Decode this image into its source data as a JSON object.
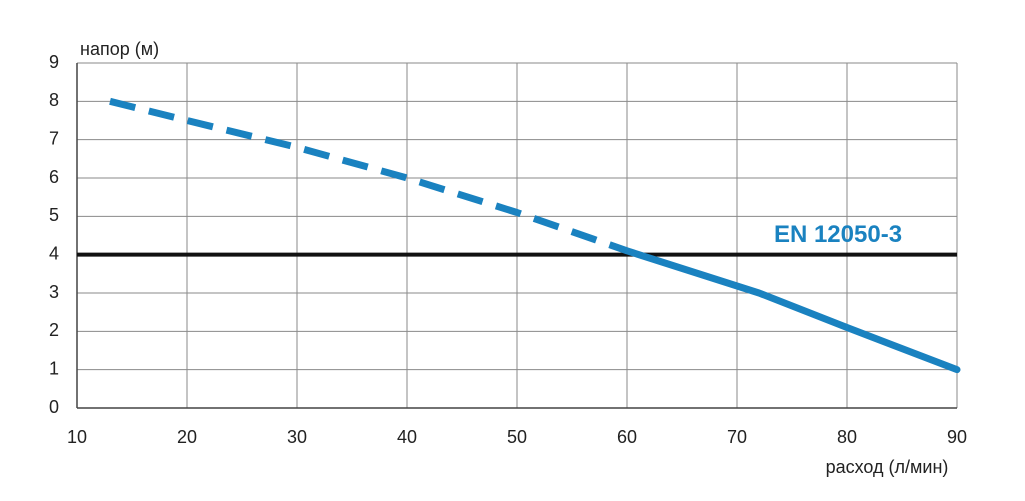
{
  "chart_data": {
    "type": "line",
    "y_label": "напор (м)",
    "x_label": "расход (л/мин)",
    "xlim": [
      10,
      90
    ],
    "xticks": [
      10,
      20,
      30,
      40,
      50,
      60,
      70,
      80,
      90
    ],
    "ylim": [
      0,
      9
    ],
    "yticks": [
      0,
      1,
      2,
      3,
      4,
      5,
      6,
      7,
      8,
      9
    ],
    "grid": true,
    "series": [
      {
        "color": "#1a82c0",
        "dashed": true,
        "x": [
          13,
          20,
          30,
          40,
          50,
          57,
          60
        ],
        "values": [
          8.0,
          7.5,
          6.8,
          6.0,
          5.1,
          4.4,
          4.1
        ]
      },
      {
        "color": "#1a82c0",
        "dashed": false,
        "x": [
          60,
          72,
          80,
          90
        ],
        "values": [
          4.1,
          3.0,
          2.1,
          1.0
        ]
      }
    ],
    "reference_line": {
      "value": 4,
      "label": "EN 12050-3",
      "color": "#111111",
      "label_color": "#1a82c0"
    }
  }
}
